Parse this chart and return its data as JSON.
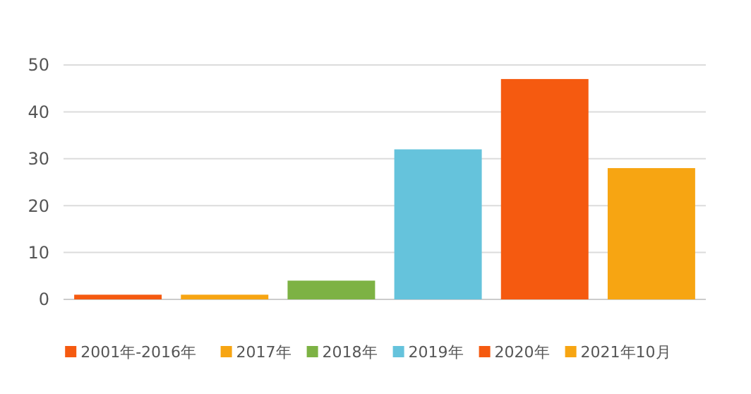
{
  "chart_data": {
    "type": "bar",
    "categories": [
      null,
      null,
      null,
      null,
      null,
      null
    ],
    "series": [
      {
        "name": "2001年-2016年",
        "color": "#f55a10",
        "values": [
          1,
          null,
          null,
          null,
          null,
          null
        ]
      },
      {
        "name": "2017年",
        "color": "#f7a512",
        "values": [
          null,
          1,
          null,
          null,
          null,
          null
        ]
      },
      {
        "name": "2018年",
        "color": "#7db244",
        "values": [
          null,
          null,
          4,
          null,
          null,
          null
        ]
      },
      {
        "name": "2019年",
        "color": "#65c3dc",
        "values": [
          null,
          null,
          null,
          32,
          null,
          null
        ]
      },
      {
        "name": "2020年",
        "color": "#f55a10",
        "values": [
          null,
          null,
          null,
          null,
          47,
          null
        ]
      },
      {
        "name": "2021年10月",
        "color": "#f7a512",
        "values": [
          null,
          null,
          null,
          null,
          null,
          28
        ]
      }
    ],
    "ylim": [
      0,
      50
    ],
    "yticks": [
      0,
      10,
      20,
      30,
      40,
      50
    ],
    "grid": "y",
    "legend": "bottom",
    "tick_labels": "y"
  }
}
